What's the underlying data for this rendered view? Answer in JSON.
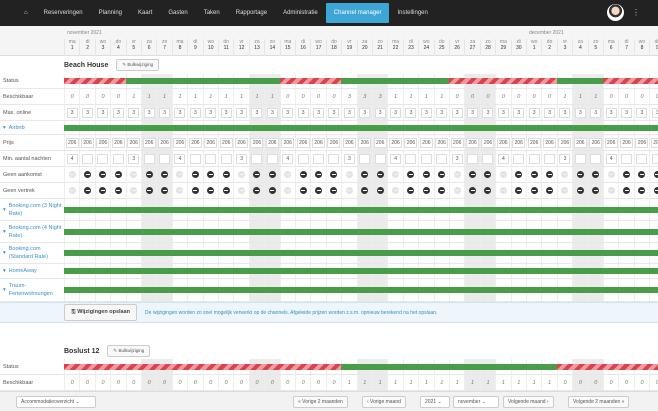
{
  "nav": {
    "home_icon": "home-icon",
    "items": [
      "Reserveringen",
      "Planning",
      "Kaart",
      "Gasten",
      "Taken",
      "Rapportage",
      "Administratie",
      "Channel manager",
      "Instellingen"
    ],
    "active": "Channel manager"
  },
  "calendar": {
    "months": [
      "november 2021",
      "december 2021"
    ],
    "weekdays": [
      "ma",
      "di",
      "wo",
      "do",
      "vr",
      "za",
      "zo",
      "ma",
      "di",
      "wo",
      "do",
      "vr",
      "za",
      "zo",
      "ma",
      "di",
      "wo",
      "do",
      "vr",
      "za",
      "zo",
      "ma",
      "di",
      "wo",
      "do",
      "vr",
      "za",
      "zo",
      "ma",
      "di",
      "wo",
      "do",
      "vr",
      "za",
      "zo",
      "ma",
      "di",
      "wo",
      "do"
    ],
    "days": [
      1,
      2,
      3,
      4,
      5,
      6,
      7,
      8,
      9,
      10,
      11,
      12,
      13,
      14,
      15,
      16,
      17,
      18,
      19,
      20,
      21,
      22,
      23,
      24,
      25,
      26,
      27,
      28,
      29,
      30,
      1,
      2,
      3,
      4,
      5,
      6,
      7,
      8,
      9
    ]
  },
  "colors": {
    "available": "#4a9d48",
    "unavailable": "#d9434e",
    "active_tab": "#3ea6d6"
  },
  "beach_house": {
    "title": "Beach House",
    "bulk": "Bulkwijziging",
    "labels": {
      "status": "Status",
      "available": "Beschikbaar",
      "max_online": "Max. online",
      "price": "Prijs",
      "min_nights": "Min. aantal nachten",
      "no_arrival": "Geen aankomst",
      "no_departure": "Geen vertrek"
    },
    "available": [
      0,
      0,
      0,
      0,
      1,
      1,
      1,
      1,
      1,
      1,
      1,
      1,
      1,
      1,
      0,
      0,
      0,
      0,
      3,
      3,
      3,
      1,
      1,
      1,
      1,
      0,
      0,
      0,
      0,
      0,
      0,
      0,
      1,
      1,
      1,
      0,
      0,
      0,
      0
    ],
    "max_online": 3,
    "price": 206,
    "min_nights": {
      "1": 4,
      "5": 3,
      "8": 4,
      "12": 3,
      "15": 4,
      "19": 3,
      "22": 4,
      "26": 3,
      "29": 4,
      "33": 3,
      "36": 4
    },
    "channels": [
      "Airbnb",
      "Booking.com (3 Night Rate)",
      "Booking.com (4 Night Rate)",
      "Booking.com (Standard Rate)",
      "HomeAway",
      "Traum-Ferienwohnungen"
    ]
  },
  "save": {
    "button": "Wijzigingen opslaan",
    "message": "De wijzigingen worden zo snel mogelijk verwerkt op de channels. Afgeleide prijzen worden z.s.m. opnieuw berekend na het opslaan."
  },
  "boslust": {
    "title": "Boslust 12",
    "bulk": "Bulkwijziging",
    "labels": {
      "status": "Status",
      "available": "Beschikbaar"
    },
    "available": [
      0,
      0,
      0,
      0,
      0,
      0,
      0,
      0,
      0,
      0,
      0,
      0,
      0,
      0,
      0,
      0,
      0,
      0,
      1,
      1,
      1,
      1,
      1,
      1,
      1,
      1,
      1,
      1,
      1,
      1,
      1,
      1,
      0,
      0,
      0,
      0,
      0,
      0,
      0
    ]
  },
  "footer": {
    "view_select": "Accommodatieoverzicht",
    "prev2": "« Vorige 2 maanden",
    "prev": "‹ Vorige maand",
    "year": "2021",
    "month": "november",
    "next": "Volgende maand ›",
    "next2": "Volgende 2 maanden »"
  }
}
